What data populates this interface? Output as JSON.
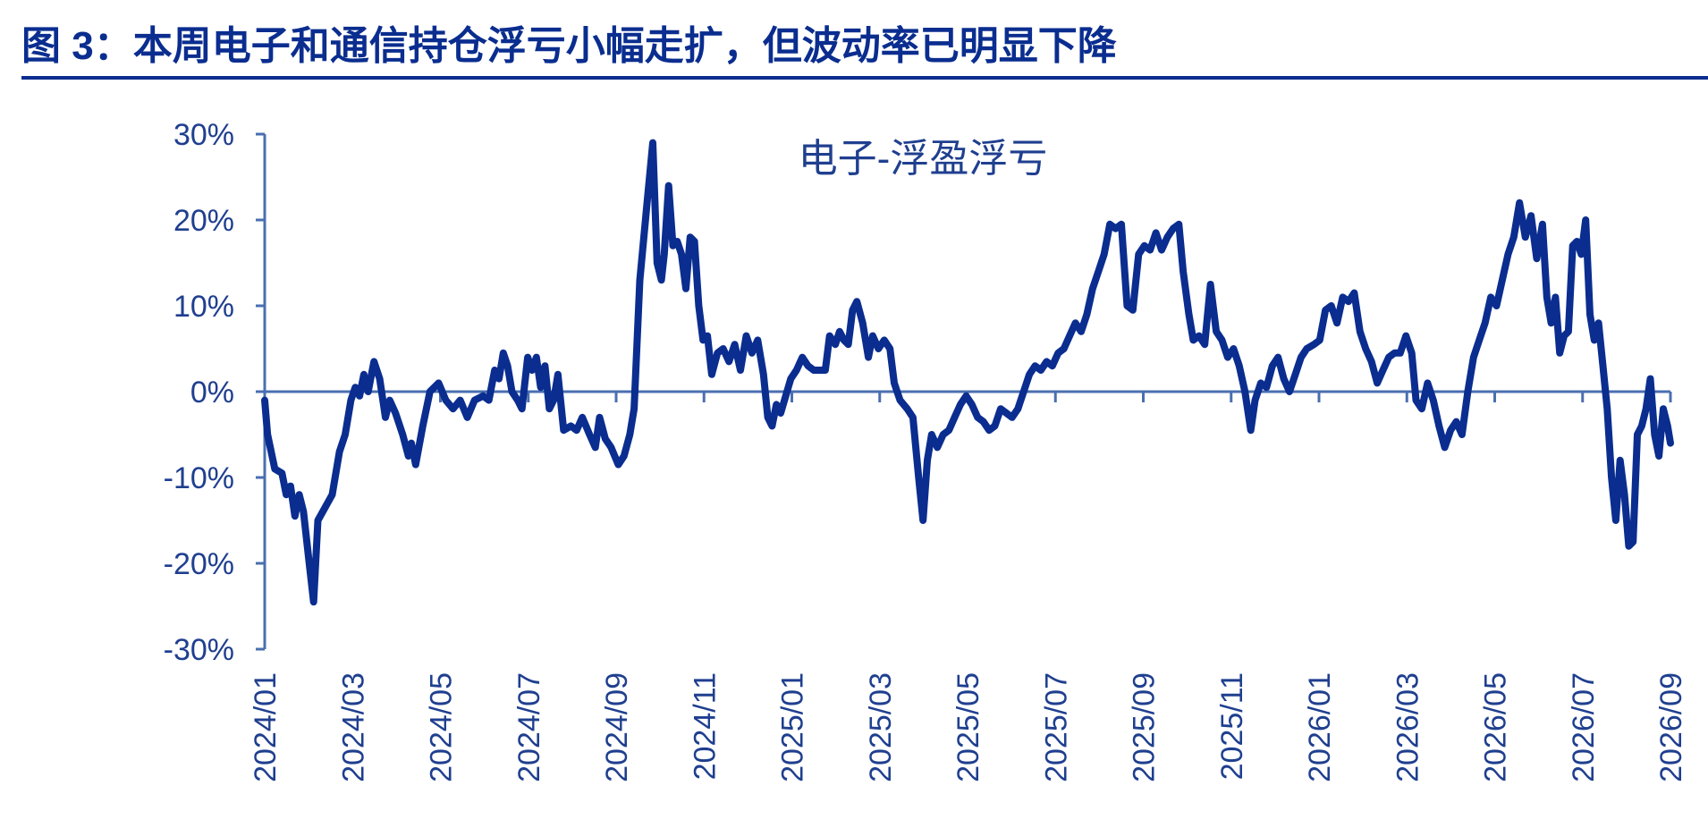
{
  "figure": {
    "title": "图 3：本周电子和通信持仓浮亏小幅走扩，但波动率已明显下降"
  },
  "colors": {
    "title": "#0a2d8f",
    "rule": "#0a2d8f",
    "series": "#0a2d8f",
    "axis": "#4a6fb0",
    "tick_text": "#1f3f8f",
    "label_text": "#1f3f8f"
  },
  "chart_data": {
    "type": "line",
    "title": "",
    "xlabel": "",
    "ylabel": "",
    "series_label": "电子-浮盈浮亏",
    "ylim": [
      -30,
      30
    ],
    "y_ticks": [
      30,
      20,
      10,
      0,
      -10,
      -20,
      -30
    ],
    "y_tick_labels": [
      "30%",
      "20%",
      "10%",
      "0%",
      "-10%",
      "-20%",
      "-30%"
    ],
    "x_range": [
      "2024-01-01",
      "2026-09-05"
    ],
    "x_tick_labels": [
      "2024/01",
      "2024/03",
      "2024/05",
      "2024/07",
      "2024/09",
      "2024/11",
      "2025/01",
      "2025/03",
      "2025/05",
      "2025/07",
      "2025/09",
      "2025/11",
      "2026/01",
      "2026/03",
      "2026/05",
      "2026/07",
      "2026/09"
    ],
    "legend": "none",
    "grid": false,
    "series": [
      {
        "name": "电子-浮盈浮亏",
        "points": [
          [
            "2024-01-01",
            -1
          ],
          [
            "2024-01-03",
            -5
          ],
          [
            "2024-01-08",
            -9
          ],
          [
            "2024-01-13",
            -9.5
          ],
          [
            "2024-01-16",
            -12
          ],
          [
            "2024-01-19",
            -11
          ],
          [
            "2024-01-22",
            -14.5
          ],
          [
            "2024-01-25",
            -12
          ],
          [
            "2024-01-28",
            -14
          ],
          [
            "2024-02-01",
            -20
          ],
          [
            "2024-02-04",
            -24.5
          ],
          [
            "2024-02-07",
            -15
          ],
          [
            "2024-02-17",
            -12
          ],
          [
            "2024-02-22",
            -7
          ],
          [
            "2024-02-26",
            -5
          ],
          [
            "2024-03-01",
            -1
          ],
          [
            "2024-03-04",
            0.5
          ],
          [
            "2024-03-07",
            -0.5
          ],
          [
            "2024-03-10",
            2
          ],
          [
            "2024-03-13",
            0
          ],
          [
            "2024-03-17",
            3.5
          ],
          [
            "2024-03-21",
            1.5
          ],
          [
            "2024-03-25",
            -3
          ],
          [
            "2024-03-28",
            -1
          ],
          [
            "2024-04-01",
            -2.5
          ],
          [
            "2024-04-06",
            -5
          ],
          [
            "2024-04-10",
            -7.5
          ],
          [
            "2024-04-12",
            -6
          ],
          [
            "2024-04-15",
            -8.5
          ],
          [
            "2024-04-20",
            -4
          ],
          [
            "2024-04-25",
            0
          ],
          [
            "2024-05-01",
            1
          ],
          [
            "2024-05-06",
            -1
          ],
          [
            "2024-05-11",
            -2
          ],
          [
            "2024-05-16",
            -1
          ],
          [
            "2024-05-21",
            -3
          ],
          [
            "2024-05-26",
            -1
          ],
          [
            "2024-06-01",
            -0.5
          ],
          [
            "2024-06-05",
            -1
          ],
          [
            "2024-06-09",
            2.5
          ],
          [
            "2024-06-12",
            1.5
          ],
          [
            "2024-06-15",
            4.5
          ],
          [
            "2024-06-18",
            3
          ],
          [
            "2024-06-21",
            0
          ],
          [
            "2024-06-25",
            -1
          ],
          [
            "2024-06-28",
            -2
          ],
          [
            "2024-07-02",
            4
          ],
          [
            "2024-07-05",
            2.5
          ],
          [
            "2024-07-08",
            4
          ],
          [
            "2024-07-11",
            0.5
          ],
          [
            "2024-07-14",
            3
          ],
          [
            "2024-07-17",
            -2
          ],
          [
            "2024-07-20",
            -1
          ],
          [
            "2024-07-23",
            2
          ],
          [
            "2024-07-27",
            -4.5
          ],
          [
            "2024-08-01",
            -4
          ],
          [
            "2024-08-05",
            -4.5
          ],
          [
            "2024-08-09",
            -3
          ],
          [
            "2024-08-14",
            -5
          ],
          [
            "2024-08-18",
            -6.5
          ],
          [
            "2024-08-21",
            -3
          ],
          [
            "2024-08-25",
            -5.5
          ],
          [
            "2024-08-29",
            -6.5
          ],
          [
            "2024-09-03",
            -8.5
          ],
          [
            "2024-09-07",
            -7.5
          ],
          [
            "2024-09-11",
            -5
          ],
          [
            "2024-09-14",
            -2
          ],
          [
            "2024-09-18",
            13
          ],
          [
            "2024-09-23",
            22
          ],
          [
            "2024-09-27",
            29
          ],
          [
            "2024-09-30",
            15
          ],
          [
            "2024-10-03",
            13
          ],
          [
            "2024-10-05",
            16
          ],
          [
            "2024-10-08",
            24
          ],
          [
            "2024-10-11",
            17
          ],
          [
            "2024-10-14",
            17.5
          ],
          [
            "2024-10-17",
            16
          ],
          [
            "2024-10-20",
            12
          ],
          [
            "2024-10-23",
            18
          ],
          [
            "2024-10-26",
            17.5
          ],
          [
            "2024-10-29",
            10
          ],
          [
            "2024-11-01",
            6
          ],
          [
            "2024-11-04",
            6.5
          ],
          [
            "2024-11-07",
            2
          ],
          [
            "2024-11-11",
            4.5
          ],
          [
            "2024-11-15",
            5
          ],
          [
            "2024-11-19",
            3.5
          ],
          [
            "2024-11-23",
            5.5
          ],
          [
            "2024-11-27",
            2.5
          ],
          [
            "2024-12-01",
            6.5
          ],
          [
            "2024-12-05",
            4.5
          ],
          [
            "2024-12-09",
            6
          ],
          [
            "2024-12-13",
            2
          ],
          [
            "2024-12-16",
            -3
          ],
          [
            "2024-12-19",
            -4
          ],
          [
            "2024-12-22",
            -1.5
          ],
          [
            "2024-12-25",
            -2.5
          ],
          [
            "2025-01-01",
            1.5
          ],
          [
            "2025-01-05",
            2.5
          ],
          [
            "2025-01-09",
            4
          ],
          [
            "2025-01-13",
            3
          ],
          [
            "2025-01-17",
            2.5
          ],
          [
            "2025-01-21",
            2.5
          ],
          [
            "2025-01-25",
            2.5
          ],
          [
            "2025-01-28",
            6.5
          ],
          [
            "2025-02-01",
            5.5
          ],
          [
            "2025-02-04",
            7
          ],
          [
            "2025-02-07",
            6
          ],
          [
            "2025-02-10",
            5.5
          ],
          [
            "2025-02-13",
            9.5
          ],
          [
            "2025-02-16",
            10.5
          ],
          [
            "2025-02-20",
            8
          ],
          [
            "2025-02-24",
            4
          ],
          [
            "2025-02-27",
            6.5
          ],
          [
            "2025-03-03",
            5
          ],
          [
            "2025-03-07",
            6
          ],
          [
            "2025-03-11",
            5
          ],
          [
            "2025-03-14",
            1
          ],
          [
            "2025-03-18",
            -1
          ],
          [
            "2025-03-23",
            -2
          ],
          [
            "2025-03-27",
            -3
          ],
          [
            "2025-03-31",
            -10
          ],
          [
            "2025-04-03",
            -15
          ],
          [
            "2025-04-06",
            -8
          ],
          [
            "2025-04-09",
            -5
          ],
          [
            "2025-04-13",
            -6.5
          ],
          [
            "2025-04-17",
            -5
          ],
          [
            "2025-04-21",
            -4.5
          ],
          [
            "2025-04-25",
            -3
          ],
          [
            "2025-04-29",
            -1.5
          ],
          [
            "2025-05-03",
            -0.5
          ],
          [
            "2025-05-07",
            -1.5
          ],
          [
            "2025-05-11",
            -3
          ],
          [
            "2025-05-15",
            -3.5
          ],
          [
            "2025-05-19",
            -4.5
          ],
          [
            "2025-05-23",
            -4
          ],
          [
            "2025-05-27",
            -2
          ],
          [
            "2025-05-31",
            -2.5
          ],
          [
            "2025-06-04",
            -3
          ],
          [
            "2025-06-08",
            -2
          ],
          [
            "2025-06-12",
            0
          ],
          [
            "2025-06-16",
            2
          ],
          [
            "2025-06-20",
            3
          ],
          [
            "2025-06-24",
            2.5
          ],
          [
            "2025-06-28",
            3.5
          ],
          [
            "2025-07-02",
            3
          ],
          [
            "2025-07-06",
            4.5
          ],
          [
            "2025-07-10",
            5
          ],
          [
            "2025-07-14",
            6.5
          ],
          [
            "2025-07-18",
            8
          ],
          [
            "2025-07-22",
            7
          ],
          [
            "2025-07-26",
            9
          ],
          [
            "2025-07-30",
            12
          ],
          [
            "2025-08-03",
            14
          ],
          [
            "2025-08-07",
            16
          ],
          [
            "2025-08-11",
            19.5
          ],
          [
            "2025-08-15",
            19
          ],
          [
            "2025-08-19",
            19.5
          ],
          [
            "2025-08-23",
            10
          ],
          [
            "2025-08-27",
            9.5
          ],
          [
            "2025-08-31",
            16
          ],
          [
            "2025-09-04",
            17
          ],
          [
            "2025-09-08",
            16.5
          ],
          [
            "2025-09-12",
            18.5
          ],
          [
            "2025-09-16",
            16.5
          ],
          [
            "2025-09-20",
            18
          ],
          [
            "2025-09-24",
            19
          ],
          [
            "2025-09-28",
            19.5
          ],
          [
            "2025-10-01",
            14
          ],
          [
            "2025-10-05",
            9
          ],
          [
            "2025-10-08",
            6
          ],
          [
            "2025-10-12",
            6.5
          ],
          [
            "2025-10-16",
            5.5
          ],
          [
            "2025-10-20",
            12.5
          ],
          [
            "2025-10-24",
            7
          ],
          [
            "2025-10-28",
            6
          ],
          [
            "2025-11-01",
            4
          ],
          [
            "2025-11-05",
            5
          ],
          [
            "2025-11-09",
            3
          ],
          [
            "2025-11-13",
            0
          ],
          [
            "2025-11-17",
            -4.5
          ],
          [
            "2025-11-20",
            -1
          ],
          [
            "2025-11-24",
            1
          ],
          [
            "2025-11-28",
            0.5
          ],
          [
            "2025-12-02",
            3
          ],
          [
            "2025-12-06",
            4
          ],
          [
            "2025-12-10",
            1.5
          ],
          [
            "2025-12-14",
            0
          ],
          [
            "2025-12-18",
            2
          ],
          [
            "2025-12-22",
            4
          ],
          [
            "2025-12-26",
            5
          ],
          [
            "2025-12-31",
            5.5
          ],
          [
            "2026-01-04",
            6
          ],
          [
            "2026-01-08",
            9.5
          ],
          [
            "2026-01-12",
            10
          ],
          [
            "2026-01-16",
            8
          ],
          [
            "2026-01-20",
            11
          ],
          [
            "2026-01-24",
            10.5
          ],
          [
            "2026-01-28",
            11.5
          ],
          [
            "2026-02-01",
            7
          ],
          [
            "2026-02-05",
            5
          ],
          [
            "2026-02-09",
            3.5
          ],
          [
            "2026-02-13",
            1
          ],
          [
            "2026-02-17",
            2.5
          ],
          [
            "2026-02-21",
            4
          ],
          [
            "2026-02-25",
            4.5
          ],
          [
            "2026-03-01",
            4.5
          ],
          [
            "2026-03-05",
            6.5
          ],
          [
            "2026-03-09",
            4.5
          ],
          [
            "2026-03-12",
            -1
          ],
          [
            "2026-03-16",
            -2
          ],
          [
            "2026-03-20",
            1
          ],
          [
            "2026-03-24",
            -1
          ],
          [
            "2026-03-28",
            -4
          ],
          [
            "2026-04-01",
            -6.5
          ],
          [
            "2026-04-05",
            -4.5
          ],
          [
            "2026-04-09",
            -3.5
          ],
          [
            "2026-04-13",
            -5
          ],
          [
            "2026-04-17",
            0
          ],
          [
            "2026-04-21",
            4
          ],
          [
            "2026-04-25",
            6
          ],
          [
            "2026-04-29",
            8
          ],
          [
            "2026-05-03",
            11
          ],
          [
            "2026-05-07",
            10
          ],
          [
            "2026-05-11",
            13
          ],
          [
            "2026-05-15",
            16
          ],
          [
            "2026-05-19",
            18
          ],
          [
            "2026-05-23",
            22
          ],
          [
            "2026-05-27",
            18
          ],
          [
            "2026-05-31",
            20.5
          ],
          [
            "2026-06-04",
            15.5
          ],
          [
            "2026-06-08",
            19.5
          ],
          [
            "2026-06-11",
            11
          ],
          [
            "2026-06-14",
            8
          ],
          [
            "2026-06-17",
            11
          ],
          [
            "2026-06-20",
            4.5
          ],
          [
            "2026-06-23",
            6.5
          ],
          [
            "2026-06-26",
            7
          ],
          [
            "2026-06-29",
            17
          ],
          [
            "2026-07-02",
            17.5
          ],
          [
            "2026-07-05",
            16
          ],
          [
            "2026-07-08",
            20
          ],
          [
            "2026-07-11",
            9
          ],
          [
            "2026-07-14",
            6
          ],
          [
            "2026-07-17",
            8
          ],
          [
            "2026-07-20",
            3
          ],
          [
            "2026-07-23",
            -2
          ],
          [
            "2026-07-26",
            -10
          ],
          [
            "2026-07-29",
            -15
          ],
          [
            "2026-08-01",
            -8
          ],
          [
            "2026-08-04",
            -12
          ],
          [
            "2026-08-07",
            -18
          ],
          [
            "2026-08-10",
            -17.5
          ],
          [
            "2026-08-13",
            -5
          ],
          [
            "2026-08-16",
            -4
          ],
          [
            "2026-08-19",
            -2
          ],
          [
            "2026-08-22",
            1.5
          ],
          [
            "2026-08-25",
            -5
          ],
          [
            "2026-08-28",
            -7.5
          ],
          [
            "2026-08-31",
            -2
          ],
          [
            "2026-09-03",
            -4
          ],
          [
            "2026-09-05",
            -6
          ]
        ]
      }
    ]
  }
}
